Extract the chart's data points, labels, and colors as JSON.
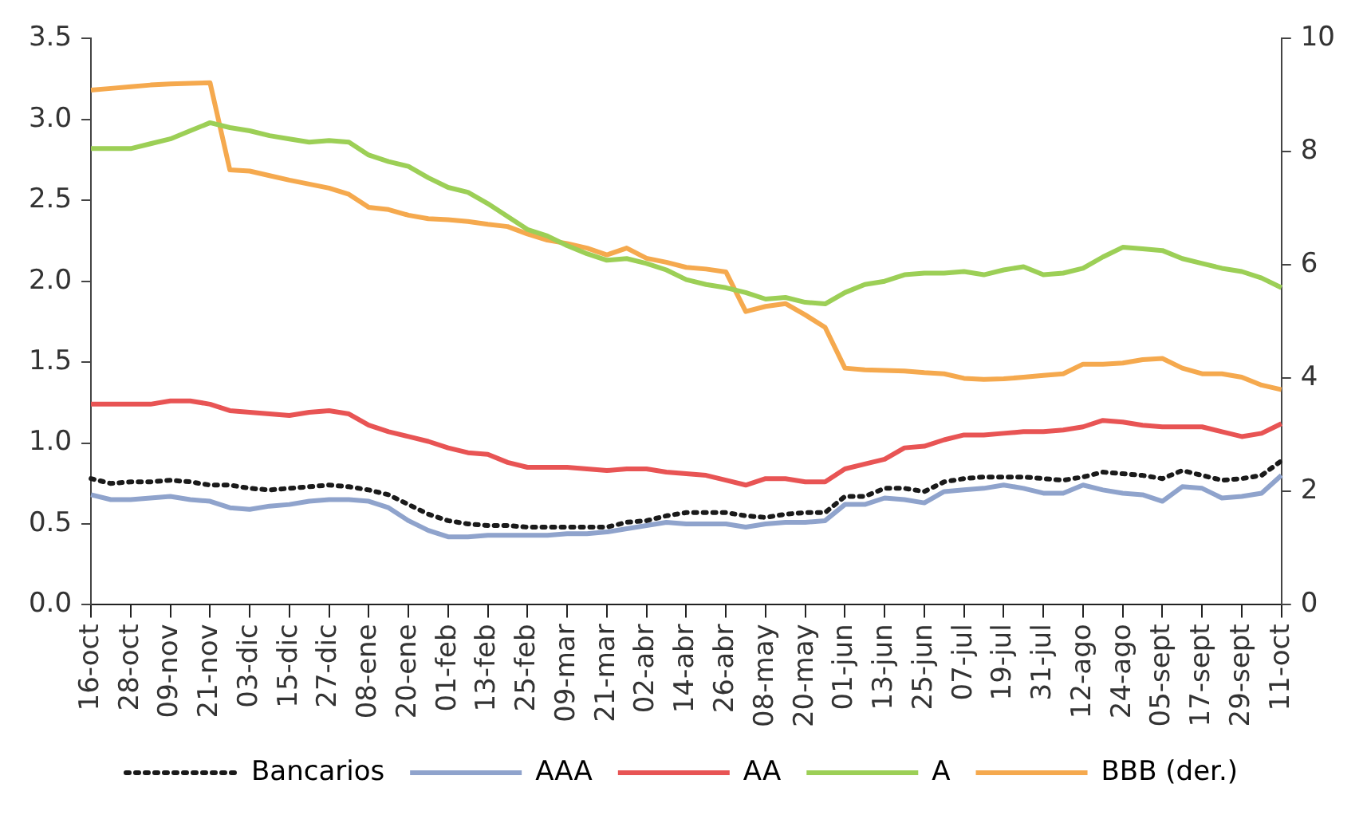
{
  "chart_data": {
    "type": "line",
    "categories": [
      "16-oct",
      null,
      "28-oct",
      null,
      "09-nov",
      null,
      "21-nov",
      null,
      "03-dic",
      null,
      "15-dic",
      null,
      "27-dic",
      null,
      "08-ene",
      null,
      "20-ene",
      null,
      "01-feb",
      null,
      "13-feb",
      null,
      "25-feb",
      null,
      "09-mar",
      null,
      "21-mar",
      null,
      "02-abr",
      null,
      "14-abr",
      null,
      "26-abr",
      null,
      "08-may",
      null,
      "20-may",
      null,
      "01-jun",
      null,
      "13-jun",
      null,
      "25-jun",
      null,
      "07-jul",
      null,
      "19-jul",
      null,
      "31-jul",
      null,
      "12-ago",
      null,
      "24-ago",
      null,
      "05-sept",
      null,
      "17-sept",
      null,
      "29-sept",
      null,
      "11-oct"
    ],
    "series": [
      {
        "name": "Bancarios",
        "color": "#1a1a1a",
        "line_style": "dotted",
        "values": [
          0.78,
          0.75,
          0.76,
          0.76,
          0.77,
          0.76,
          0.74,
          0.74,
          0.72,
          0.71,
          0.72,
          0.73,
          0.74,
          0.73,
          0.71,
          0.68,
          0.62,
          0.56,
          0.52,
          0.5,
          0.49,
          0.49,
          0.48,
          0.48,
          0.48,
          0.48,
          0.48,
          0.51,
          0.52,
          0.55,
          0.57,
          0.57,
          0.57,
          0.55,
          0.54,
          0.56,
          0.57,
          0.57,
          0.67,
          0.67,
          0.72,
          0.72,
          0.7,
          0.76,
          0.78,
          0.79,
          0.79,
          0.79,
          0.78,
          0.77,
          0.79,
          0.82,
          0.81,
          0.8,
          0.78,
          0.83,
          0.8,
          0.77,
          0.78,
          0.8,
          0.89
        ]
      },
      {
        "name": "AAA",
        "color": "#8fa3cc",
        "line_style": "solid",
        "values": [
          0.68,
          0.65,
          0.65,
          0.66,
          0.67,
          0.65,
          0.64,
          0.6,
          0.59,
          0.61,
          0.62,
          0.64,
          0.65,
          0.65,
          0.64,
          0.6,
          0.52,
          0.46,
          0.42,
          0.42,
          0.43,
          0.43,
          0.43,
          0.43,
          0.44,
          0.44,
          0.45,
          0.47,
          0.49,
          0.51,
          0.5,
          0.5,
          0.5,
          0.48,
          0.5,
          0.51,
          0.51,
          0.52,
          0.62,
          0.62,
          0.66,
          0.65,
          0.63,
          0.7,
          0.71,
          0.72,
          0.74,
          0.72,
          0.69,
          0.69,
          0.74,
          0.71,
          0.69,
          0.68,
          0.64,
          0.73,
          0.72,
          0.66,
          0.67,
          0.69,
          0.8
        ]
      },
      {
        "name": "AA",
        "color": "#e85454",
        "line_style": "solid",
        "values": [
          1.24,
          1.24,
          1.24,
          1.24,
          1.26,
          1.26,
          1.24,
          1.2,
          1.19,
          1.18,
          1.17,
          1.19,
          1.2,
          1.18,
          1.11,
          1.07,
          1.04,
          1.01,
          0.97,
          0.94,
          0.93,
          0.88,
          0.85,
          0.85,
          0.85,
          0.84,
          0.83,
          0.84,
          0.84,
          0.82,
          0.81,
          0.8,
          0.77,
          0.74,
          0.78,
          0.78,
          0.76,
          0.76,
          0.84,
          0.87,
          0.9,
          0.97,
          0.98,
          1.02,
          1.05,
          1.05,
          1.06,
          1.07,
          1.07,
          1.08,
          1.1,
          1.14,
          1.13,
          1.11,
          1.1,
          1.1,
          1.1,
          1.07,
          1.04,
          1.06,
          1.12
        ]
      },
      {
        "name": "A",
        "color": "#9ccf56",
        "line_style": "solid",
        "values": [
          2.82,
          2.82,
          2.82,
          2.85,
          2.88,
          2.93,
          2.98,
          2.95,
          2.93,
          2.9,
          2.88,
          2.86,
          2.87,
          2.86,
          2.78,
          2.74,
          2.71,
          2.64,
          2.58,
          2.55,
          2.48,
          2.4,
          2.32,
          2.28,
          2.22,
          2.17,
          2.13,
          2.14,
          2.11,
          2.07,
          2.01,
          1.98,
          1.96,
          1.93,
          1.89,
          1.9,
          1.87,
          1.86,
          1.93,
          1.98,
          2.0,
          2.04,
          2.05,
          2.05,
          2.06,
          2.04,
          2.07,
          2.09,
          2.04,
          2.05,
          2.08,
          2.15,
          2.21,
          2.2,
          2.19,
          2.14,
          2.11,
          2.08,
          2.06,
          2.02,
          1.96
        ]
      },
      {
        "name": "BBB (der.)",
        "color": "#f5a94e",
        "line_style": "solid",
        "axis": "y2",
        "values": [
          9.09,
          9.12,
          9.15,
          9.18,
          9.2,
          9.21,
          9.22,
          7.68,
          7.66,
          7.58,
          7.5,
          7.43,
          7.36,
          7.25,
          7.02,
          6.98,
          6.88,
          6.82,
          6.8,
          6.77,
          6.72,
          6.68,
          6.55,
          6.44,
          6.38,
          6.3,
          6.18,
          6.3,
          6.12,
          6.05,
          5.96,
          5.93,
          5.88,
          5.18,
          5.27,
          5.32,
          5.12,
          4.9,
          4.18,
          4.15,
          4.14,
          4.13,
          4.1,
          4.08,
          4.0,
          3.98,
          3.99,
          4.02,
          4.05,
          4.08,
          4.25,
          4.25,
          4.27,
          4.33,
          4.35,
          4.18,
          4.08,
          4.08,
          4.02,
          3.88,
          3.8
        ]
      }
    ],
    "ylim": [
      0,
      3.5
    ],
    "yticks": [
      {
        "value": 0,
        "label": "0.0"
      },
      {
        "value": 0.5,
        "label": "0.5"
      },
      {
        "value": 1,
        "label": "1.0"
      },
      {
        "value": 1.5,
        "label": "1.5"
      },
      {
        "value": 2,
        "label": "2.0"
      },
      {
        "value": 2.5,
        "label": "2.5"
      },
      {
        "value": 3,
        "label": "3.0"
      },
      {
        "value": 3.5,
        "label": "3.5"
      }
    ],
    "y2lim": [
      0,
      10
    ],
    "y2ticks": [
      0,
      2,
      4,
      6,
      8,
      10
    ],
    "grid": false,
    "legend": "bottom",
    "marker": "none"
  }
}
